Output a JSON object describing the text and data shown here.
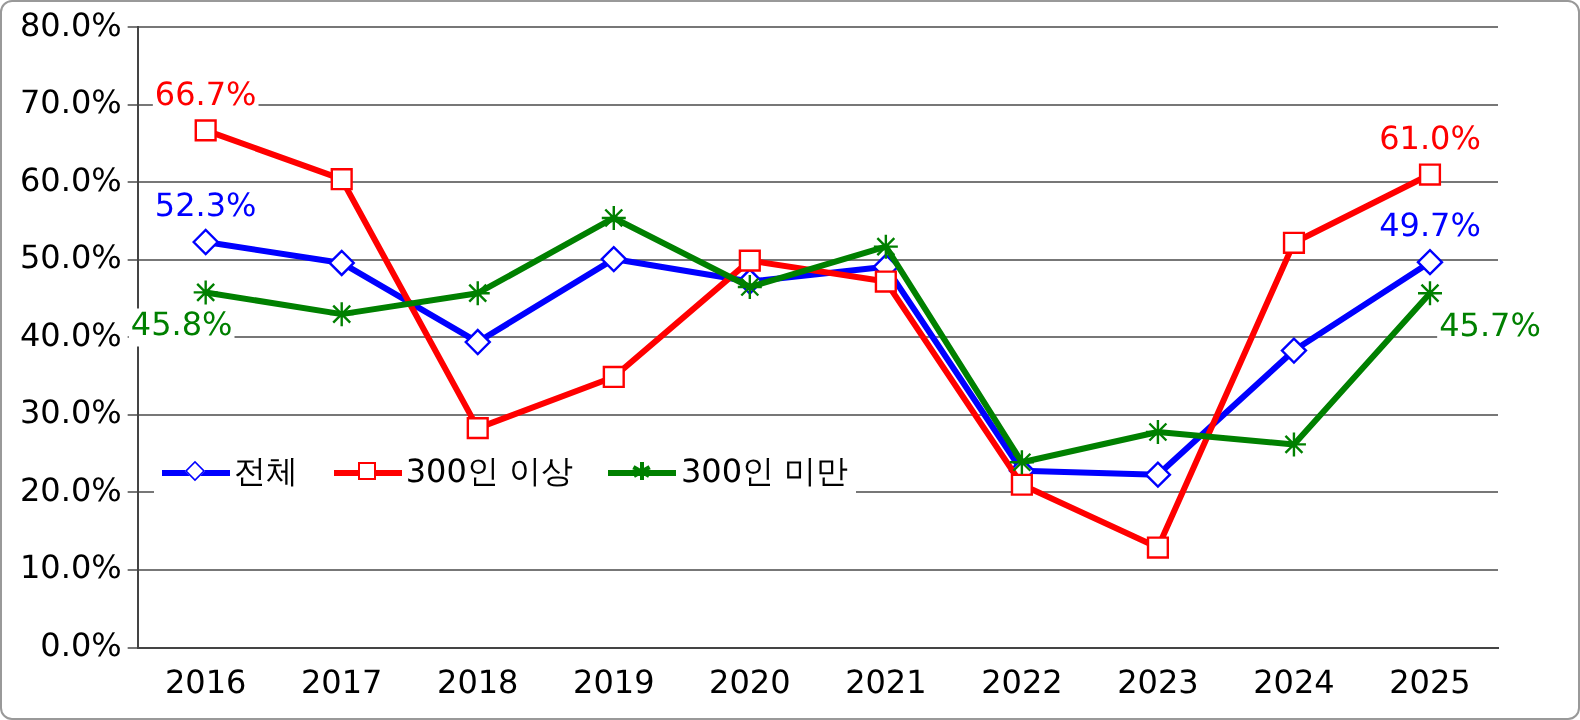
{
  "chart_data": {
    "type": "line",
    "categories": [
      "2016",
      "2017",
      "2018",
      "2019",
      "2020",
      "2021",
      "2022",
      "2023",
      "2024",
      "2025"
    ],
    "series": [
      {
        "name": "전체",
        "color": "#0000ff",
        "marker": "diamond",
        "values": [
          52.3,
          49.6,
          39.4,
          50.1,
          47.2,
          49.1,
          22.8,
          22.3,
          38.3,
          49.7
        ],
        "value_labels": [
          "52.3%",
          null,
          null,
          null,
          null,
          null,
          null,
          null,
          null,
          "49.7%"
        ]
      },
      {
        "name": "300인 이상",
        "color": "#ff0000",
        "marker": "square",
        "values": [
          66.7,
          60.4,
          28.3,
          34.9,
          49.9,
          47.2,
          21.0,
          12.9,
          52.2,
          61.0
        ],
        "value_labels": [
          "66.7%",
          null,
          null,
          null,
          null,
          null,
          null,
          null,
          null,
          "61.0%"
        ]
      },
      {
        "name": "300인 미만",
        "color": "#008000",
        "marker": "cross",
        "values": [
          45.8,
          43.0,
          45.7,
          55.4,
          46.5,
          51.7,
          23.9,
          27.8,
          26.2,
          45.7
        ],
        "value_labels": [
          "45.8%",
          null,
          null,
          null,
          null,
          null,
          null,
          null,
          null,
          "45.7%"
        ]
      }
    ],
    "ylim": [
      0,
      80
    ],
    "yticks": [
      {
        "value": 0,
        "label": "0.0%"
      },
      {
        "value": 10,
        "label": "10.0%"
      },
      {
        "value": 20,
        "label": "20.0%"
      },
      {
        "value": 30,
        "label": "30.0%"
      },
      {
        "value": 40,
        "label": "40.0%"
      },
      {
        "value": 50,
        "label": "50.0%"
      },
      {
        "value": 60,
        "label": "60.0%"
      },
      {
        "value": 70,
        "label": "70.0%"
      },
      {
        "value": 80,
        "label": "80.0%"
      }
    ],
    "grid": "y",
    "legend": "bottom left",
    "line_style": "solid"
  }
}
